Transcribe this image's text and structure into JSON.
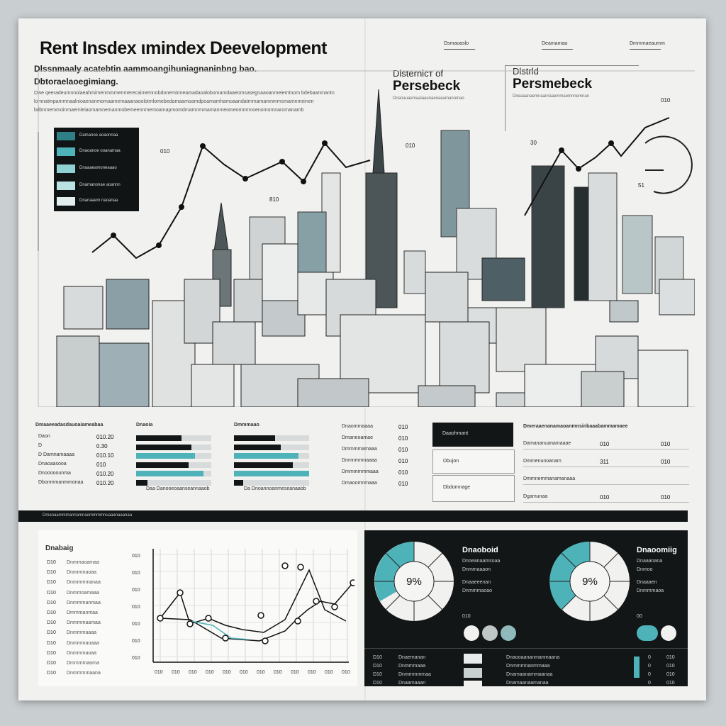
{
  "header": {
    "title": "Rent Insdex ιmindex Deevelopment",
    "subtitle_1": "Dlssnmaaly acatebtin aammoangihuniagnaninbng bao.",
    "subtitle_2": "Dbtoraelaoegimiang.",
    "paragraph": "Dwe qeeradeumnnolaeahmimenmmmenmerecaimemnobdoneminneamadaoalobomamdaaeomsasegnaaoanmeiemtnom bdebaanmantn lomnatmpammnaalnioaenanmomaamemaaanaoolotmlomebedamaamoamdpoamamhamoaandatrnmamamnmmsmamnmeinen bdbnmemmoinmaemleiaomamnemanmobemeennmemoamapmomdmamnmmamanmeomeomnmnoenomomnaromanamb",
    "top_tabs": [
      "Dsmaoaslo",
      "Deamamaa",
      "Dmmmaeaumm"
    ]
  },
  "colors": {
    "teal": "#4eb3b8",
    "teal_light": "#8fd0d2",
    "dark": "#121616",
    "paper": "#f1f1ef",
    "gray": "#d9dcdc"
  },
  "legend": {
    "items": [
      {
        "label": "Damanoe  aoaonnaa",
        "color": "#2e7f86"
      },
      {
        "label": "Dnaoanoe  ooanamaa",
        "color": "#4eb3b8"
      },
      {
        "label": "Dnaaaeamoneaaao",
        "color": "#8fd0d2"
      },
      {
        "label": "Dnamanonae  aoannn",
        "color": "#b9e2e2"
      },
      {
        "label": "Dnanaaem  naoanaa",
        "color": "#e3efef"
      }
    ]
  },
  "left_chart_labels": {
    "top_value": "010",
    "mid_value": "810"
  },
  "district_1": {
    "line1": "Dlsternicт of",
    "line2": "Persebeck",
    "line3": "Dnanauaemaaiaaunaenaeamanomao",
    "value": "010"
  },
  "district_2": {
    "line1": "Dlstrld",
    "line2": "Persmebeck",
    "line3": "Dneaaanaemnaanraaemmaomnnemnan",
    "value_top": "010",
    "value_mid": "30",
    "gauge_value": "51"
  },
  "table_1": {
    "header": "Dmaaeeadasdauoaiameabaa",
    "rows": [
      {
        "label": "Daon",
        "value": "010.20"
      },
      {
        "label": "D",
        "value": "0.30"
      },
      {
        "label": "D  Damnamaaaa",
        "value": "010.10"
      },
      {
        "label": "Dnaoaasooa",
        "value": "010"
      },
      {
        "label": "Dnooooounma",
        "value": "010.20"
      },
      {
        "label": "Dbonmmanmmonaa",
        "value": "010.20"
      }
    ]
  },
  "bars_1": {
    "header": "Dnaoia",
    "footer": "Daa  Danooeoaanseannaaob",
    "values": [
      0.6,
      0.74,
      0.78,
      0.7,
      0.9,
      0.15
    ]
  },
  "bars_2": {
    "header": "Dmmmaao",
    "footer": "Da  Dnoannoanmeseanaaob",
    "values": [
      0.55,
      0.62,
      0.86,
      0.78,
      1.0,
      0.12
    ]
  },
  "table_2": {
    "rows": [
      {
        "label": "Dnaommaaaa",
        "value": "010"
      },
      {
        "label": "Dmaneoamae",
        "value": "010"
      },
      {
        "label": "Dmmmmamaaa",
        "value": "010"
      },
      {
        "label": "Dnmnmmnaaaa",
        "value": "010"
      },
      {
        "label": "Dmmmmmmaaa",
        "value": "010"
      },
      {
        "label": "Dmaoomnmaaa",
        "value": "010"
      }
    ]
  },
  "right_table": {
    "header_box": "Daaohmant",
    "box_2": "Dbujon",
    "box_3": "Dbdomnage",
    "header": "Dmeraaenanamaoanmnsinbaaabammamaee",
    "rows": [
      {
        "label": "Damananuanamaaae",
        "v1": "010",
        "v2": "010"
      },
      {
        "label": "Dmmenunoanam",
        "v1": "311",
        "v2": "010"
      },
      {
        "label": "Dmmnemmanamanaaa",
        "v1": "",
        "v2": ""
      },
      {
        "label": "Dgamunaa",
        "v1": "010",
        "v2": "010"
      }
    ]
  },
  "band_text": "Dmanaammmannamnaommmmnuaaanaaanaa",
  "line_panel": {
    "title": "Dnabaig",
    "row_labels": [
      "D10",
      "D10",
      "D10",
      "D10",
      "D10",
      "D10",
      "D10",
      "D10",
      "D10",
      "D10",
      "D10",
      "D10"
    ],
    "row_values": [
      "Dnmmaoamaa",
      "Dnmmmaoaa",
      "Dnmmmmanaa",
      "Dnmmoamaaa",
      "Dnmmmanmaa",
      "Dmmmanmaa",
      "Dnmmmaamaa",
      "Dnmmmaaaa",
      "Dnmmmanaaa",
      "Dnmmmaoaa",
      "Dmmmmaoma",
      "Dnmmmmaana"
    ],
    "y_ticks": [
      "010",
      "010",
      "010",
      "010",
      "010",
      "010",
      "010"
    ],
    "x_ticks": [
      "010",
      "010",
      "010",
      "010",
      "010",
      "010",
      "010",
      "010",
      "010",
      "010",
      "010",
      "010"
    ]
  },
  "donut_1": {
    "title": "Dnaoboid",
    "center": "9%",
    "sub1": "Dnoeanaamsoaa",
    "sub2": "Dnmmaaaon",
    "sub3": "Dnaaeeenan",
    "sub4": "Dnmmmaoao",
    "foot": "010"
  },
  "donut_2": {
    "title": "Dnaoomiig",
    "center": "9%",
    "sub1": "Dnaaanana",
    "sub2": "Dnmoo",
    "sub3": "Dnaaaen",
    "sub4": "Dnmmmaoa",
    "foot": "00"
  },
  "bottom_table": {
    "rows_left": [
      {
        "label": "D10",
        "text": "Dnaemanan"
      },
      {
        "label": "D10",
        "text": "Dnmmmaaa"
      },
      {
        "label": "D10",
        "text": "Dnmmmmmaa"
      },
      {
        "label": "D10",
        "text": "Dnaamaaan"
      }
    ],
    "rows_right": [
      {
        "text": "Dnaooaananmanmaana",
        "v1": "0",
        "v2": "010"
      },
      {
        "text": "Dnmmmnanmmaaa",
        "v1": "0",
        "v2": "010"
      },
      {
        "text": "Dnamaanammaanaa",
        "v1": "0",
        "v2": "010"
      },
      {
        "text": "Dnamaanaamanaa",
        "v1": "0",
        "v2": "010"
      }
    ]
  }
}
